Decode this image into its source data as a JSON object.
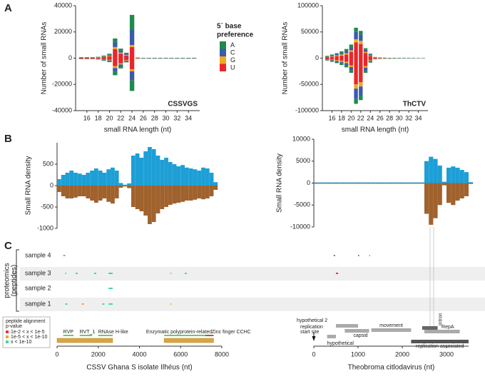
{
  "panels": [
    "A",
    "B",
    "C"
  ],
  "chart_data": [
    {
      "type": "bar",
      "title": "CSSVGS",
      "xlabel": "small RNA length (nt)",
      "ylabel": "Number of small RNAs",
      "legend_title": [
        "5´ base",
        "preference"
      ],
      "x": [
        15,
        16,
        17,
        18,
        19,
        20,
        21,
        22,
        23,
        24,
        25,
        26,
        27,
        28,
        29,
        30,
        31,
        32,
        33,
        34,
        35
      ],
      "xlim": [
        14,
        36
      ],
      "xticks": [
        16,
        18,
        20,
        22,
        24,
        26,
        28,
        30,
        32,
        34
      ],
      "ylim": [
        -40000,
        40000
      ],
      "yticks": [
        -40000,
        -20000,
        0,
        20000,
        40000
      ],
      "series": [
        {
          "name": "A",
          "color": "#1f8a4c",
          "values": [
            200,
            200,
            200,
            300,
            500,
            800,
            3000,
            1500,
            800,
            11000,
            100,
            50,
            50,
            50,
            50,
            50,
            50,
            50,
            50,
            50,
            50
          ],
          "antisense": [
            -200,
            -200,
            -200,
            -300,
            -500,
            -700,
            -2500,
            -1500,
            -600,
            -8000,
            -100,
            -50,
            -50,
            -50,
            -50,
            -50,
            -50,
            -50,
            -50,
            -50,
            -50
          ]
        },
        {
          "name": "C",
          "color": "#3b5ba9",
          "values": [
            150,
            150,
            150,
            200,
            400,
            700,
            3500,
            1500,
            800,
            12000,
            100,
            50,
            50,
            50,
            50,
            50,
            50,
            50,
            50,
            50,
            50
          ],
          "antisense": [
            -150,
            -150,
            -150,
            -200,
            -400,
            -600,
            -3000,
            -1500,
            -700,
            -7000,
            -100,
            -50,
            -50,
            -50,
            -50,
            -50,
            -50,
            -50,
            -50,
            -50,
            -50
          ]
        },
        {
          "name": "G",
          "color": "#f4a81d",
          "values": [
            100,
            100,
            100,
            150,
            300,
            400,
            1500,
            800,
            500,
            1500,
            50,
            30,
            30,
            30,
            30,
            30,
            30,
            30,
            30,
            30,
            30
          ],
          "antisense": [
            -100,
            -100,
            -100,
            -150,
            -300,
            -400,
            -1500,
            -800,
            -400,
            -1500,
            -50,
            -30,
            -30,
            -30,
            -30,
            -30,
            -30,
            -30,
            -30,
            -30,
            -30
          ]
        },
        {
          "name": "U",
          "color": "#e8272b",
          "values": [
            300,
            300,
            300,
            400,
            800,
            1500,
            7000,
            3500,
            2000,
            8500,
            200,
            100,
            100,
            100,
            100,
            100,
            100,
            100,
            100,
            100,
            100
          ],
          "antisense": [
            -300,
            -300,
            -300,
            -400,
            -800,
            -1300,
            -6000,
            -4000,
            -1500,
            -8500,
            -200,
            -100,
            -100,
            -100,
            -100,
            -100,
            -100,
            -100,
            -100,
            -100,
            -100
          ]
        }
      ]
    },
    {
      "type": "bar",
      "title": "ThCTV",
      "xlabel": "small RNA length (nt)",
      "ylabel": "Number of small RNAs",
      "x": [
        15,
        16,
        17,
        18,
        19,
        20,
        21,
        22,
        23,
        24,
        25,
        26,
        27,
        28,
        29,
        30,
        31,
        32,
        33,
        34,
        35
      ],
      "xlim": [
        14,
        36
      ],
      "xticks": [
        16,
        18,
        20,
        22,
        24,
        26,
        28,
        30,
        32,
        34
      ],
      "ylim": [
        -100000,
        100000
      ],
      "yticks": [
        -100000,
        -50000,
        0,
        50000,
        100000
      ],
      "series": [
        {
          "name": "A",
          "color": "#1f8a4c",
          "values": [
            1000,
            1500,
            2000,
            3000,
            4000,
            5000,
            8000,
            7000,
            3000,
            1500,
            500,
            300,
            200,
            150,
            100,
            100,
            80,
            60,
            50,
            40,
            30
          ],
          "antisense": [
            -1000,
            -1500,
            -2000,
            -3000,
            -4000,
            -5000,
            -9000,
            -8000,
            -4000,
            -1500,
            -500,
            -300,
            -200,
            -150,
            -100,
            -100,
            -80,
            -60,
            -50,
            -40,
            -30
          ]
        },
        {
          "name": "C",
          "color": "#3b5ba9",
          "values": [
            1000,
            1500,
            2000,
            3000,
            4000,
            6000,
            14000,
            12000,
            4000,
            2000,
            500,
            300,
            200,
            150,
            100,
            100,
            80,
            60,
            50,
            40,
            30
          ],
          "antisense": [
            -1000,
            -1500,
            -2000,
            -3000,
            -4000,
            -6000,
            -20000,
            -18000,
            -6000,
            -2000,
            -500,
            -300,
            -200,
            -150,
            -100,
            -100,
            -80,
            -60,
            -50,
            -40,
            -30
          ]
        },
        {
          "name": "G",
          "color": "#f4a81d",
          "values": [
            500,
            1000,
            1500,
            2000,
            2500,
            3000,
            6000,
            6000,
            2000,
            1000,
            300,
            200,
            150,
            100,
            80,
            60,
            50,
            40,
            30,
            20,
            20
          ],
          "antisense": [
            -500,
            -1000,
            -1500,
            -2000,
            -2500,
            -3000,
            -8000,
            -8000,
            -3000,
            -1000,
            -300,
            -200,
            -150,
            -100,
            -80,
            -60,
            -50,
            -40,
            -30,
            -20,
            -20
          ]
        },
        {
          "name": "U",
          "color": "#e8272b",
          "values": [
            2000,
            3000,
            4000,
            5000,
            7000,
            12000,
            30000,
            27000,
            10000,
            4000,
            1000,
            600,
            400,
            300,
            200,
            150,
            120,
            100,
            80,
            60,
            50
          ],
          "antisense": [
            -2000,
            -3000,
            -4000,
            -5000,
            -7000,
            -14000,
            -50000,
            -46000,
            -15000,
            -4000,
            -1000,
            -600,
            -400,
            -300,
            -200,
            -150,
            -120,
            -100,
            -80,
            -60,
            -50
          ]
        }
      ]
    },
    {
      "type": "area",
      "ylabel": "Small RNA density",
      "x": [
        0,
        200,
        400,
        600,
        800,
        1000,
        1200,
        1400,
        1600,
        1800,
        2000,
        2200,
        2400,
        2600,
        2800,
        3000,
        3200,
        3400,
        3600,
        3800,
        4000,
        4200,
        4400,
        4600,
        4800,
        5000,
        5200,
        5400,
        5600,
        5800,
        6000,
        6200,
        6400,
        6600,
        6800,
        7000,
        7200,
        7400,
        7600,
        7800
      ],
      "xlim": [
        0,
        8000
      ],
      "ylim": [
        -1000,
        1000
      ],
      "yticks": [
        -1000,
        -500,
        0,
        500
      ],
      "series": [
        {
          "color": "#1d9fd6",
          "values": [
            150,
            250,
            300,
            350,
            300,
            280,
            250,
            300,
            350,
            400,
            350,
            300,
            380,
            420,
            350,
            60,
            20,
            50,
            700,
            750,
            650,
            800,
            900,
            850,
            700,
            600,
            650,
            550,
            500,
            450,
            480,
            420,
            400,
            380,
            350,
            420,
            400,
            300,
            80,
            0
          ]
        },
        {
          "color": "#a0622d",
          "values": [
            -150,
            -250,
            -300,
            -300,
            -280,
            -250,
            -250,
            -300,
            -350,
            -400,
            -350,
            -300,
            -380,
            -420,
            -300,
            -50,
            -20,
            -60,
            -500,
            -550,
            -600,
            -700,
            -900,
            -850,
            -650,
            -550,
            -500,
            -450,
            -420,
            -400,
            -380,
            -350,
            -350,
            -330,
            -300,
            -320,
            -300,
            -250,
            -100,
            0
          ]
        }
      ]
    },
    {
      "type": "area",
      "ylabel": "Small RNA density",
      "x": [
        0,
        100,
        200,
        300,
        400,
        500,
        600,
        700,
        800,
        900,
        1000,
        1100,
        1200,
        1300,
        1400,
        1500,
        1600,
        1700,
        1800,
        1900,
        2000,
        2100,
        2200,
        2300,
        2400,
        2500,
        2600,
        2700,
        2800,
        2900,
        3000,
        3100,
        3200,
        3300,
        3400,
        3500
      ],
      "xlim": [
        0,
        3500
      ],
      "ylim": [
        -10000,
        10000
      ],
      "yticks": [
        -10000,
        -5000,
        0,
        5000,
        10000
      ],
      "series": [
        {
          "color": "#1d9fd6",
          "values": [
            150,
            150,
            150,
            150,
            150,
            150,
            150,
            150,
            150,
            150,
            150,
            150,
            150,
            150,
            150,
            150,
            150,
            150,
            150,
            150,
            150,
            150,
            150,
            150,
            150,
            5000,
            6000,
            5500,
            4000,
            300,
            3500,
            3800,
            3500,
            3000,
            2500,
            200
          ]
        },
        {
          "color": "#a0622d",
          "values": [
            -150,
            -150,
            -150,
            -150,
            -150,
            -150,
            -150,
            -150,
            -150,
            -150,
            -150,
            -150,
            -150,
            -150,
            -150,
            -150,
            -150,
            -150,
            -150,
            -150,
            -150,
            -150,
            -150,
            -150,
            -150,
            -7000,
            -9500,
            -8000,
            -5000,
            -500,
            -4500,
            -5000,
            -4000,
            -3500,
            -3000,
            -200
          ]
        }
      ]
    }
  ],
  "proteomics": {
    "ylabel": [
      "proteomics",
      "(peptides)"
    ],
    "samples": [
      "sample 4",
      "sample 3",
      "sample 2",
      "sample 1"
    ],
    "legend": {
      "title": [
        "peptide alignment",
        "p-value"
      ],
      "levels": [
        {
          "label": "1e-2 < x < 1e-5",
          "color": "#e03a2f"
        },
        {
          "label": "1e-5 < x < 1e-10",
          "color": "#f2a330"
        },
        {
          "label": "x < 1e-10",
          "color": "#3fd9a5"
        }
      ]
    }
  },
  "genome_maps": [
    {
      "xlabel": "CSSV Ghana S isolate Ilhéus (nt)",
      "xlim": [
        0,
        8000
      ],
      "xticks": [
        0,
        2000,
        4000,
        6000,
        8000
      ],
      "orfs": [
        [
          0,
          2700
        ],
        [
          5200,
          7600
        ]
      ],
      "features": [
        {
          "label": "RVP",
          "start": 300,
          "end": 800
        },
        {
          "label": "RVT_1",
          "start": 1100,
          "end": 1700
        },
        {
          "label": "RNAse H-like",
          "start": 2000,
          "end": 2700
        },
        {
          "label": "Enzymatic polyprotein-related",
          "start": 5200,
          "end": 7200
        },
        {
          "label": "Zinc finger CCHC",
          "start": 7200,
          "end": 7600
        }
      ],
      "peptides": [
        {
          "sample": 0,
          "start": 300,
          "end": 400,
          "level": 2
        },
        {
          "sample": 1,
          "start": 400,
          "end": 450,
          "level": 2
        },
        {
          "sample": 1,
          "start": 900,
          "end": 1000,
          "level": 2
        },
        {
          "sample": 1,
          "start": 1800,
          "end": 1900,
          "level": 2
        },
        {
          "sample": 1,
          "start": 2500,
          "end": 2700,
          "level": 2
        },
        {
          "sample": 1,
          "start": 5500,
          "end": 5550,
          "level": 1
        },
        {
          "sample": 1,
          "start": 6200,
          "end": 6300,
          "level": 2
        },
        {
          "sample": 2,
          "start": 2500,
          "end": 2700,
          "level": 2
        },
        {
          "sample": 3,
          "start": 400,
          "end": 500,
          "level": 2
        },
        {
          "sample": 3,
          "start": 1200,
          "end": 1300,
          "level": 1
        },
        {
          "sample": 3,
          "start": 2200,
          "end": 2300,
          "level": 2
        },
        {
          "sample": 3,
          "start": 2500,
          "end": 2700,
          "level": 2
        },
        {
          "sample": 3,
          "start": 5500,
          "end": 5550,
          "level": 1
        }
      ]
    },
    {
      "xlabel": "Theobroma citlodavirus (nt)",
      "xlim": [
        0,
        3500
      ],
      "xticks": [
        0,
        1000,
        2000,
        3000
      ],
      "features": [
        {
          "label": [
            "replication",
            "start site"
          ],
          "start": 0,
          "end": 0
        },
        {
          "label": "hypothetical 2",
          "start": 500,
          "end": 1000
        },
        {
          "label": "hypothetical",
          "start": 300,
          "end": 500
        },
        {
          "label": "capsid",
          "start": 700,
          "end": 1250
        },
        {
          "label": "movement",
          "start": 1300,
          "end": 2200
        },
        {
          "label": "intron",
          "start": 2450,
          "end": 2800
        },
        {
          "label": "RepA",
          "start": 2500,
          "end": 3300
        },
        {
          "label": "replication associated",
          "start": 2200,
          "end": 3500
        }
      ],
      "peptides": [
        {
          "sample": 0,
          "start": 450,
          "end": 480,
          "level": 0
        },
        {
          "sample": 0,
          "start": 1000,
          "end": 1020,
          "level": 0
        },
        {
          "sample": 0,
          "start": 1250,
          "end": 1270,
          "level": 1
        },
        {
          "sample": 1,
          "start": 500,
          "end": 550,
          "level": 0
        }
      ]
    }
  ]
}
